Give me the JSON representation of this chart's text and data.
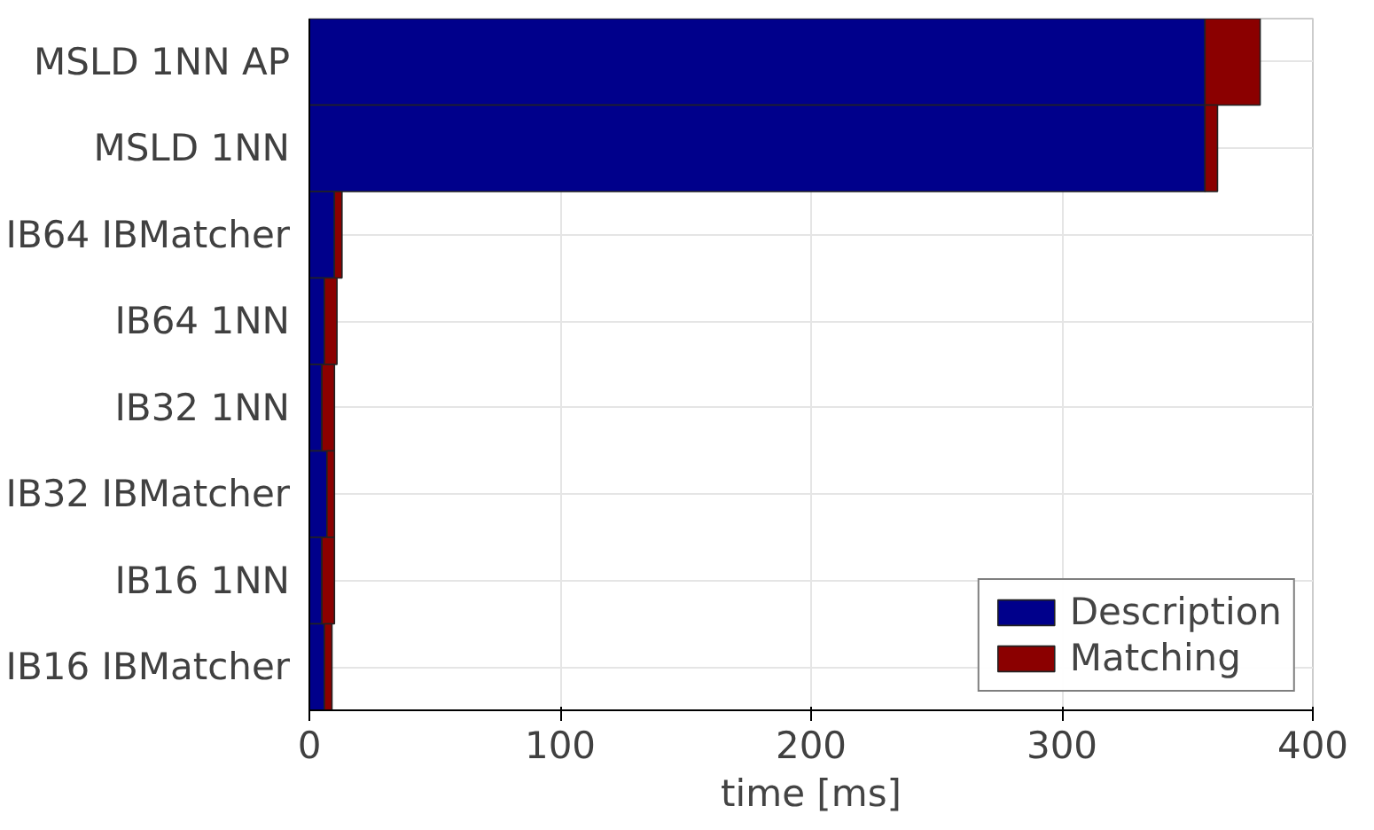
{
  "chart_data": {
    "type": "bar",
    "orientation": "horizontal",
    "stacked": true,
    "xlabel": "time [ms]",
    "categories": [
      "MSLD 1NN AP",
      "MSLD 1NN",
      "IB64 IBMatcher",
      "IB64 1NN",
      "IB32 1NN",
      "IB32 IBMatcher",
      "IB16 1NN",
      "IB16 IBMatcher"
    ],
    "series": [
      {
        "name": "Description",
        "color": "#00008b",
        "values": [
          357,
          357,
          10,
          6,
          5,
          7,
          5,
          6
        ]
      },
      {
        "name": "Matching",
        "color": "#8b0000",
        "values": [
          22,
          5,
          3,
          5,
          5,
          3,
          5,
          3
        ]
      }
    ],
    "xlim": [
      0,
      400
    ],
    "xticks": [
      0,
      100,
      200,
      300,
      400
    ],
    "grid": true,
    "legend": "bottom right"
  }
}
